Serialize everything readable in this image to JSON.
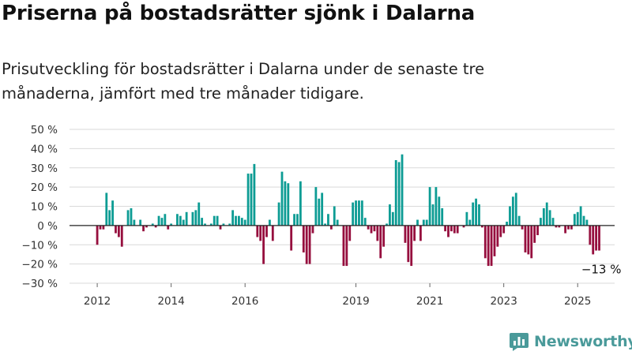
{
  "title": "Priserna på bostadsrätter sjönk i Dalarna",
  "subtitle": "Prisutveckling för bostadsrätter i Dalarna under de senaste tre månaderna, jämfört med tre månader tidigare.",
  "brand": {
    "name": "Newsworthy",
    "icon": "bar-chart-logo-icon"
  },
  "colors": {
    "positive": "#0d9c94",
    "negative": "#960f3e",
    "grid": "#d9d9d9",
    "axis": "#222222",
    "brand": "#4a9a9a"
  },
  "chart_data": {
    "type": "bar",
    "ylim": [
      -30,
      50
    ],
    "yticks": [
      -30,
      -20,
      -10,
      0,
      10,
      20,
      30,
      40,
      50
    ],
    "ytick_labels": [
      "−30 %",
      "−20 %",
      "−10 %",
      "0 %",
      "10 %",
      "20 %",
      "30 %",
      "40 %",
      "50 %"
    ],
    "xlim": [
      2011.25,
      2026.0
    ],
    "xticks": [
      2012,
      2014,
      2016,
      2019,
      2021,
      2023,
      2025
    ],
    "xtick_labels": [
      "2012",
      "2014",
      "2016",
      "2019",
      "2021",
      "2023",
      "2025"
    ],
    "start_month": "2012-01",
    "values": [
      -10,
      -2,
      -2,
      17,
      8,
      13,
      -4,
      -6,
      -11,
      0,
      8,
      9,
      3,
      0,
      3,
      -3,
      -1,
      0,
      1,
      -1,
      5,
      4,
      6,
      -2,
      1,
      0,
      6,
      5,
      3,
      7,
      0,
      7,
      8,
      12,
      4,
      1,
      0,
      1,
      5,
      5,
      -2,
      1,
      0,
      1,
      8,
      5,
      5,
      4,
      3,
      27,
      27,
      32,
      -6,
      -8,
      -20,
      -6,
      3,
      -8,
      0,
      12,
      28,
      23,
      22,
      -13,
      6,
      6,
      23,
      -14,
      -20,
      -20,
      -4,
      20,
      14,
      17,
      1,
      6,
      -2,
      10,
      3,
      0,
      -21,
      -21,
      -8,
      12,
      13,
      13,
      13,
      4,
      -2,
      -4,
      -3,
      -8,
      -17,
      -11,
      1,
      11,
      7,
      34,
      33,
      37,
      -9,
      -19,
      -21,
      -8,
      3,
      -8,
      3,
      3,
      20,
      11,
      20,
      15,
      9,
      -3,
      -6,
      -3,
      -4,
      -4,
      0,
      -1,
      7,
      3,
      12,
      14,
      11,
      -1,
      -17,
      -21,
      -21,
      -16,
      -11,
      -6,
      -4,
      2,
      10,
      15,
      17,
      5,
      -2,
      -14,
      -15,
      -17,
      -9,
      -5,
      4,
      9,
      12,
      8,
      4,
      -1,
      -1,
      0,
      -4,
      -2,
      -2,
      6,
      7,
      10,
      5,
      3,
      -10,
      -15,
      -13,
      -13
    ],
    "annotation": "−13 %"
  }
}
